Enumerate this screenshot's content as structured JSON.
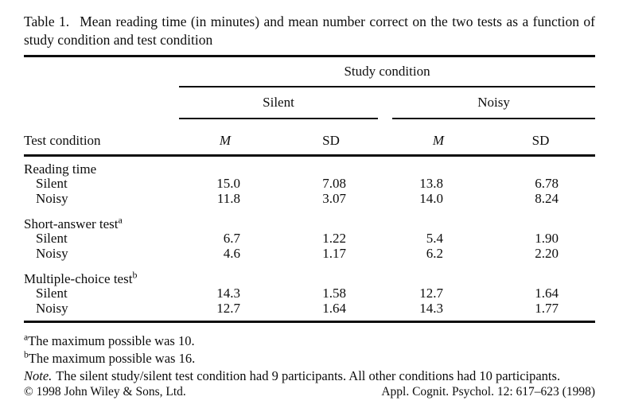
{
  "caption": {
    "label": "Table 1.",
    "text": "Mean reading time (in minutes) and mean number correct on the two tests as a function of study condition and test condition"
  },
  "table": {
    "spanner_header": "Study condition",
    "group_silent": "Silent",
    "group_noisy": "Noisy",
    "stub_header": "Test condition",
    "columns": [
      "M",
      "SD",
      "M",
      "SD"
    ],
    "rows": [
      {
        "label": "Reading time",
        "sup": "",
        "cells": [
          "",
          "",
          "",
          ""
        ]
      },
      {
        "label": "Silent",
        "cells": [
          "15.0",
          "7.08",
          "13.8",
          "6.78"
        ]
      },
      {
        "label": "Noisy",
        "cells": [
          "11.8",
          "3.07",
          "14.0",
          "8.24"
        ]
      },
      {
        "label": "Short-answer test",
        "sup": "a",
        "cells": [
          "",
          "",
          "",
          ""
        ]
      },
      {
        "label": "Silent",
        "cells": [
          "6.7",
          "1.22",
          "5.4",
          "1.90"
        ]
      },
      {
        "label": "Noisy",
        "cells": [
          "4.6",
          "1.17",
          "6.2",
          "2.20"
        ]
      },
      {
        "label": "Multiple-choice test",
        "sup": "b",
        "cells": [
          "",
          "",
          "",
          ""
        ]
      },
      {
        "label": "Silent",
        "cells": [
          "14.3",
          "1.58",
          "12.7",
          "1.64"
        ]
      },
      {
        "label": "Noisy",
        "cells": [
          "12.7",
          "1.64",
          "14.3",
          "1.77"
        ]
      }
    ]
  },
  "footnotes": [
    {
      "marker": "a",
      "text": "The maximum possible was 10."
    },
    {
      "marker": "b",
      "text": "The maximum possible was 16."
    },
    {
      "marker": "Note.",
      "text": "The silent study/silent test condition had 9 participants. All other conditions had 10 participants."
    }
  ],
  "footer": {
    "copyright": "© 1998 John Wiley & Sons, Ltd.",
    "journal_ref": "Appl. Cognit. Psychol. 12: 617–623 (1998)"
  }
}
